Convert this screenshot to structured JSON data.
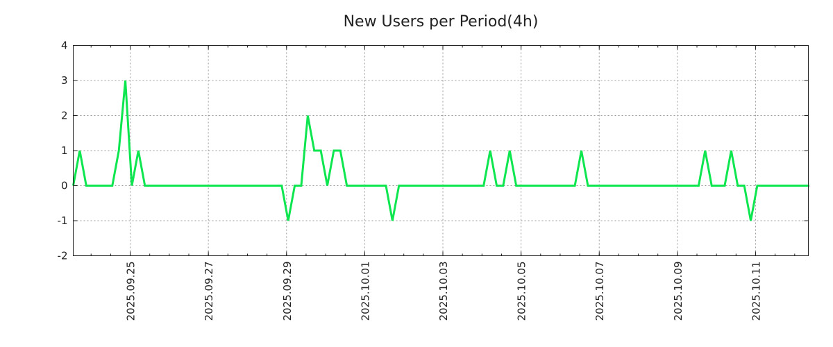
{
  "chart_data": {
    "type": "line",
    "title": "New Users per Period(4h)",
    "xlabel": "",
    "ylabel": "",
    "x_start": "2025-09-23T13:15",
    "step_hours": 4,
    "xlim_days_from_first_tick": [
      -1.457,
      17.35
    ],
    "ylim": [
      -2,
      4
    ],
    "y_ticks": [
      "4",
      "3",
      "2",
      "1",
      "0",
      "-1",
      "-2"
    ],
    "y_tick_values": [
      4,
      3,
      2,
      1,
      0,
      -1,
      -2
    ],
    "x_ticks": [
      "2025.09.25",
      "2025.09.27",
      "2025.09.29",
      "2025.10.01",
      "2025.10.03",
      "2025.10.05",
      "2025.10.07",
      "2025.10.09",
      "2025.10.11"
    ],
    "x_tick_days": [
      0,
      2,
      4,
      6,
      8,
      10,
      12,
      14,
      16
    ],
    "grid": true,
    "line_color": "#0ee650",
    "series": [
      {
        "name": "New Users",
        "values": [
          0,
          1,
          0,
          0,
          0,
          0,
          0,
          1,
          3,
          0,
          1,
          0,
          0,
          0,
          0,
          0,
          0,
          0,
          0,
          0,
          0,
          0,
          0,
          0,
          0,
          0,
          0,
          0,
          0,
          0,
          0,
          0,
          0,
          -1,
          0,
          0,
          2,
          1,
          1,
          0,
          1,
          1,
          0,
          0,
          0,
          0,
          0,
          0,
          0,
          -1,
          0,
          0,
          0,
          0,
          0,
          0,
          0,
          0,
          0,
          0,
          0,
          0,
          0,
          0,
          1,
          0,
          0,
          1,
          0,
          0,
          0,
          0,
          0,
          0,
          0,
          0,
          0,
          0,
          1,
          0,
          0,
          0,
          0,
          0,
          0,
          0,
          0,
          0,
          0,
          0,
          0,
          0,
          0,
          0,
          0,
          0,
          0,
          1,
          0,
          0,
          0,
          1,
          0,
          0,
          -1,
          0,
          0,
          0,
          0,
          0,
          0,
          0,
          0,
          0
        ]
      }
    ]
  }
}
